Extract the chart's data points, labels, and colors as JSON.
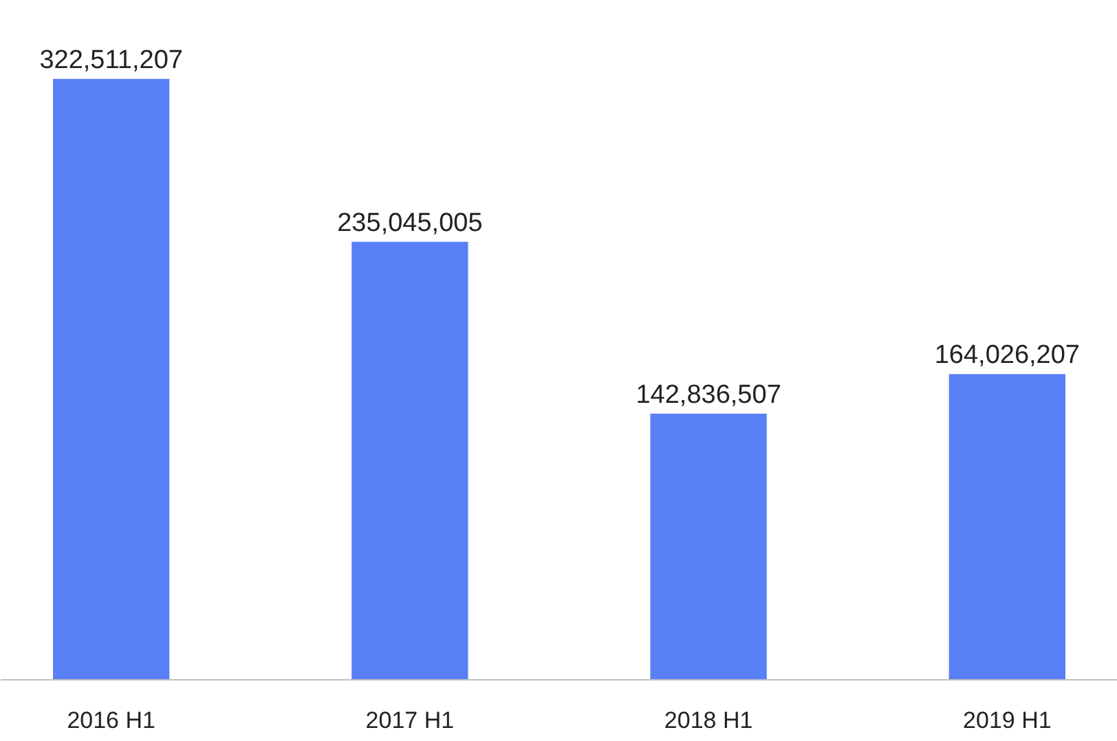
{
  "chart_data": {
    "type": "bar",
    "categories": [
      "2016 H1",
      "2017 H1",
      "2018 H1",
      "2019 H1"
    ],
    "values": [
      322511207,
      235045005,
      142836507,
      164026207
    ],
    "color": "#5a80f8",
    "value_labels": [
      "322,511,207",
      "235,045,005",
      "142,836,507",
      "164,026,207"
    ],
    "grid": false
  }
}
